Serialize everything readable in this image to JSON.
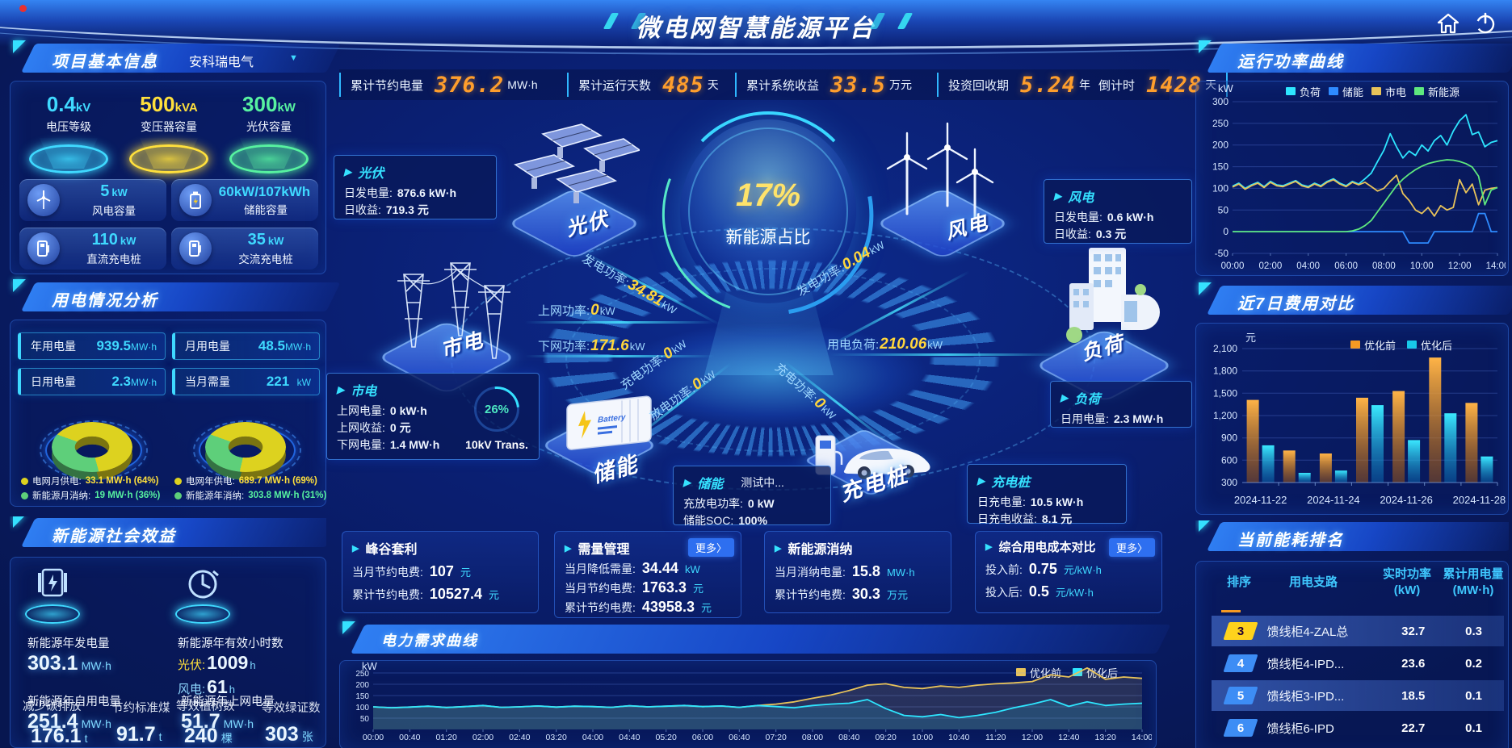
{
  "header": {
    "title": "微电网智慧能源平台",
    "stats": [
      {
        "label": "累计节约电量",
        "value": "376.2",
        "unit": "MW·h"
      },
      {
        "label": "累计运行天数",
        "value": "485",
        "unit": "天"
      },
      {
        "label": "累计系统收益",
        "value": "33.5",
        "unit": "万元"
      },
      {
        "label": "投资回收期",
        "value": "5.24",
        "unit": "年"
      },
      {
        "label": "倒计时",
        "value": "1428",
        "unit": "天"
      }
    ]
  },
  "project_info": {
    "title": "项目基本信息",
    "company": "安科瑞电气",
    "pedestals": [
      {
        "value": "0.4",
        "unit": "kV",
        "label": "电压等级"
      },
      {
        "value": "500",
        "unit": "kVA",
        "label": "变压器容量"
      },
      {
        "value": "300",
        "unit": "kW",
        "label": "光伏容量"
      }
    ],
    "cards": [
      {
        "value": "5",
        "unit": "kW",
        "label": "风电容量"
      },
      {
        "value": "60kW/107kWh",
        "unit": "",
        "label": "储能容量"
      },
      {
        "value": "110",
        "unit": "kW",
        "label": "直流充电桩"
      },
      {
        "value": "35",
        "unit": "kW",
        "label": "交流充电桩"
      }
    ]
  },
  "usage_analysis": {
    "title": "用电情况分析",
    "chips": [
      {
        "label": "年用电量",
        "value": "939.5",
        "unit": "MW·h"
      },
      {
        "label": "月用电量",
        "value": "48.5",
        "unit": "MW·h"
      },
      {
        "label": "日用电量",
        "value": "2.3",
        "unit": "MW·h"
      },
      {
        "label": "当月需量",
        "value": "221",
        "unit": "kW"
      }
    ],
    "donuts": [
      {
        "pct": 64,
        "colors": [
          "#ddd21f",
          "#5ecf7a"
        ],
        "legend": [
          {
            "label": "电网月供电:",
            "value": "33.1 MW·h (64%)"
          },
          {
            "label": "新能源月消纳:",
            "value": "19 MW·h (36%)"
          }
        ]
      },
      {
        "pct": 69,
        "colors": [
          "#ddd21f",
          "#5ecf7a"
        ],
        "legend": [
          {
            "label": "电网年供电:",
            "value": "689.7 MW·h (69%)"
          },
          {
            "label": "新能源年消纳:",
            "value": "303.8 MW·h (31%)"
          }
        ]
      }
    ]
  },
  "social_benefits": {
    "title": "新能源社会效益",
    "gen_label": "新能源年发电量",
    "gen_value": "303.1",
    "gen_unit": "MW·h",
    "hours_label": "新能源年有效小时数",
    "pv_key": "光伏:",
    "pv_hours": "1009",
    "pv_hours_unit": "h",
    "wind_key": "风电:",
    "wind_hours": "61",
    "wind_hours_unit": "h",
    "self_label": "新能源年自用电量",
    "self_value": "251.4",
    "self_unit": "MW·h",
    "co2_label": "减少碳排放",
    "co2_value": "176.1",
    "co2_unit": "t",
    "coal_label": "节约标准煤",
    "coal_value": "91.7",
    "coal_unit": "t",
    "feedin_label": "新能源年上网电量",
    "feedin_value": "51.7",
    "feedin_unit": "MW·h",
    "tree_label": "等效植树数",
    "tree_value": "240",
    "tree_unit": "棵",
    "cert_label": "等效绿证数",
    "cert_value": "303",
    "cert_unit": "张"
  },
  "center": {
    "kpi_value": "17%",
    "kpi_label": "新能源占比",
    "battery_text": "Battery",
    "transformer_pct": "26%",
    "transformer_label": "10kV Trans.",
    "storage_status": "测试中...",
    "nodes": {
      "pv": "光伏",
      "wind": "风电",
      "grid": "市电",
      "load": "负荷",
      "storage": "储能",
      "charger": "充电桩"
    },
    "flows": [
      {
        "label": "发电功率:",
        "value": "34.81",
        "unit": "kW"
      },
      {
        "label": "发电功率:",
        "value": "0.04",
        "unit": "kW"
      },
      {
        "label": "上网功率:",
        "value": "0",
        "unit": "kW"
      },
      {
        "label": "下网功率:",
        "value": "171.6",
        "unit": "kW"
      },
      {
        "label": "用电负荷:",
        "value": "210.06",
        "unit": "kW"
      },
      {
        "label": "充电功率:",
        "value": "0",
        "unit": "kW"
      },
      {
        "label": "放电功率:",
        "value": "0",
        "unit": "kW"
      },
      {
        "label": "充电功率:",
        "value": "0",
        "unit": "kW"
      }
    ],
    "panels": {
      "pv": {
        "title": "光伏",
        "rows": [
          {
            "label": "日发电量:",
            "value": "876.6 kW·h"
          },
          {
            "label": "日收益:",
            "value": "719.3 元"
          }
        ]
      },
      "grid": {
        "title": "市电",
        "rows": [
          {
            "label": "上网电量:",
            "value": "0 kW·h"
          },
          {
            "label": "上网收益:",
            "value": "0 元"
          },
          {
            "label": "下网电量:",
            "value": "1.4 MW·h"
          }
        ]
      },
      "storage": {
        "title": "储能",
        "rows": [
          {
            "label": "充放电功率:",
            "value": "0 kW"
          },
          {
            "label": "储能SOC:",
            "value": "100%"
          }
        ]
      },
      "charger": {
        "title": "充电桩",
        "rows": [
          {
            "label": "日充电量:",
            "value": "10.5 kW·h"
          },
          {
            "label": "日充电收益:",
            "value": "8.1 元"
          }
        ]
      },
      "wind": {
        "title": "风电",
        "rows": [
          {
            "label": "日发电量:",
            "value": "0.6 kW·h"
          },
          {
            "label": "日收益:",
            "value": "0.3 元"
          }
        ]
      },
      "load": {
        "title": "负荷",
        "rows": [
          {
            "label": "日用电量:",
            "value": "2.3 MW·h"
          }
        ]
      }
    }
  },
  "bottom_cards": {
    "more_label": "更多〉",
    "cards": [
      {
        "title": "峰谷套利",
        "rows": [
          {
            "label": "当月节约电费:",
            "value": "107",
            "unit": "元"
          },
          {
            "label": "累计节约电费:",
            "value": "10527.4",
            "unit": "元"
          }
        ]
      },
      {
        "title": "需量管理",
        "rows": [
          {
            "label": "当月降低需量:",
            "value": "34.44",
            "unit": "kW"
          },
          {
            "label": "当月节约电费:",
            "value": "1763.3",
            "unit": "元"
          },
          {
            "label": "累计节约电费:",
            "value": "43958.3",
            "unit": "元"
          }
        ]
      },
      {
        "title": "新能源消纳",
        "rows": [
          {
            "label": "当月消纳电量:",
            "value": "15.8",
            "unit": "MW·h"
          },
          {
            "label": "累计节约电费:",
            "value": "30.3",
            "unit": "万元"
          }
        ]
      },
      {
        "title": "综合用电成本对比",
        "rows": [
          {
            "label": "投入前:",
            "value": "0.75",
            "unit": "元/kW·h"
          },
          {
            "label": "投入后:",
            "value": "0.5",
            "unit": "元/kW·h"
          }
        ]
      }
    ]
  },
  "ranking": {
    "title": "当前能耗排名",
    "headers": [
      "排序",
      "用电支路",
      "实时功率",
      "累计用电量"
    ],
    "header_units": [
      "",
      "",
      "(kW)",
      "(MW·h)"
    ],
    "rows": [
      {
        "rank": "3",
        "name": "馈线柜4-ZAL总",
        "power": "32.7",
        "energy": "0.3"
      },
      {
        "rank": "4",
        "name": "馈线柜4-IPD...",
        "power": "23.6",
        "energy": "0.2"
      },
      {
        "rank": "5",
        "name": "馈线柜3-IPD...",
        "power": "18.5",
        "energy": "0.1"
      },
      {
        "rank": "6",
        "name": "馈线柜6-IPD",
        "power": "22.7",
        "energy": "0.1"
      }
    ]
  },
  "chart_data": [
    {
      "id": "power-curve",
      "type": "line",
      "title": "运行功率曲线",
      "ylabel": "kW",
      "ylim": [
        -50,
        300
      ],
      "yticks": [
        -50,
        0,
        50,
        100,
        150,
        200,
        250,
        300
      ],
      "x_labels": [
        "00:00",
        "02:00",
        "04:00",
        "06:00",
        "08:00",
        "10:00",
        "12:00",
        "14:00"
      ],
      "legend_position": "top",
      "series": [
        {
          "name": "负荷",
          "color": "#2ee6ff",
          "values": [
            105,
            112,
            100,
            108,
            114,
            104,
            116,
            108,
            106,
            112,
            118,
            108,
            104,
            112,
            106,
            116,
            122,
            112,
            106,
            116,
            110,
            122,
            135,
            162,
            188,
            226,
            196,
            170,
            186,
            176,
            200,
            186,
            210,
            222,
            200,
            232,
            256,
            270,
            224,
            230,
            196,
            206,
            210
          ]
        },
        {
          "name": "储能",
          "color": "#2e8bff",
          "values": [
            0,
            0,
            0,
            0,
            0,
            0,
            0,
            0,
            0,
            0,
            0,
            0,
            0,
            0,
            0,
            0,
            0,
            0,
            0,
            0,
            0,
            0,
            0,
            0,
            0,
            0,
            0,
            0,
            -26,
            -26,
            -26,
            -26,
            0,
            0,
            0,
            0,
            0,
            0,
            0,
            42,
            42,
            0,
            0
          ]
        },
        {
          "name": "市电",
          "color": "#e8c35a",
          "values": [
            103,
            110,
            98,
            106,
            112,
            102,
            114,
            106,
            104,
            110,
            116,
            106,
            102,
            110,
            104,
            114,
            120,
            110,
            104,
            114,
            108,
            114,
            104,
            94,
            100,
            116,
            130,
            88,
            72,
            50,
            42,
            56,
            36,
            60,
            50,
            56,
            120,
            90,
            110,
            62,
            96,
            100,
            102
          ]
        },
        {
          "name": "新能源",
          "color": "#5ee87e",
          "values": [
            0,
            0,
            0,
            0,
            0,
            0,
            0,
            0,
            0,
            0,
            0,
            0,
            0,
            0,
            0,
            0,
            0,
            0,
            0,
            2,
            6,
            14,
            26,
            46,
            66,
            86,
            106,
            121,
            133,
            143,
            151,
            157,
            161,
            164,
            166,
            165,
            162,
            157,
            149,
            128,
            62,
            96,
            102
          ]
        }
      ]
    },
    {
      "id": "cost-compare",
      "type": "bar",
      "title": "近7日费用对比",
      "ylabel": "元",
      "ylim": [
        300,
        2100
      ],
      "yticks": [
        300,
        600,
        900,
        1200,
        1500,
        1800,
        2100
      ],
      "categories": [
        "2024-11-22",
        "2024-11-23",
        "2024-11-24",
        "2024-11-25",
        "2024-11-26",
        "2024-11-27",
        "2024-11-28"
      ],
      "x_labels": [
        "2024-11-22",
        "2024-11-24",
        "2024-11-26",
        "2024-11-28"
      ],
      "legend_position": "top-right",
      "series": [
        {
          "name": "优化前",
          "color": "#f59a23",
          "values": [
            1410,
            730,
            690,
            1440,
            1530,
            1980,
            1370
          ]
        },
        {
          "name": "优化后",
          "color": "#18c8e8",
          "values": [
            800,
            430,
            460,
            1340,
            870,
            1230,
            650
          ]
        }
      ]
    },
    {
      "id": "demand-curve",
      "type": "line",
      "title": "电力需求曲线",
      "ylabel": "kW",
      "ylim": [
        0,
        300
      ],
      "yticks": [
        50,
        100,
        150,
        200,
        250
      ],
      "x_labels": [
        "00:00",
        "00:40",
        "01:20",
        "02:00",
        "02:40",
        "03:20",
        "04:00",
        "04:40",
        "05:20",
        "06:00",
        "06:40",
        "07:20",
        "08:00",
        "08:40",
        "09:20",
        "10:00",
        "10:40",
        "11:20",
        "12:00",
        "12:40",
        "13:20",
        "14:00"
      ],
      "legend_position": "top-right",
      "series": [
        {
          "name": "优化前",
          "color": "#e8c35a",
          "values": [
            100,
            96,
            99,
            103,
            97,
            101,
            106,
            98,
            100,
            104,
            99,
            103,
            101,
            98,
            105,
            100,
            103,
            106,
            101,
            104,
            98,
            106,
            112,
            122,
            138,
            152,
            172,
            196,
            202,
            186,
            181,
            192,
            186,
            196,
            202,
            206,
            212,
            242,
            232,
            272,
            222,
            232,
            226
          ]
        },
        {
          "name": "优化后",
          "color": "#2ee6ff",
          "values": [
            100,
            96,
            99,
            103,
            97,
            101,
            106,
            98,
            100,
            104,
            99,
            103,
            101,
            98,
            105,
            100,
            103,
            106,
            101,
            104,
            98,
            106,
            101,
            96,
            106,
            112,
            116,
            132,
            92,
            62,
            56,
            66,
            52,
            62,
            76,
            96,
            112,
            132,
            102,
            122,
            106,
            112,
            116
          ]
        }
      ]
    }
  ]
}
